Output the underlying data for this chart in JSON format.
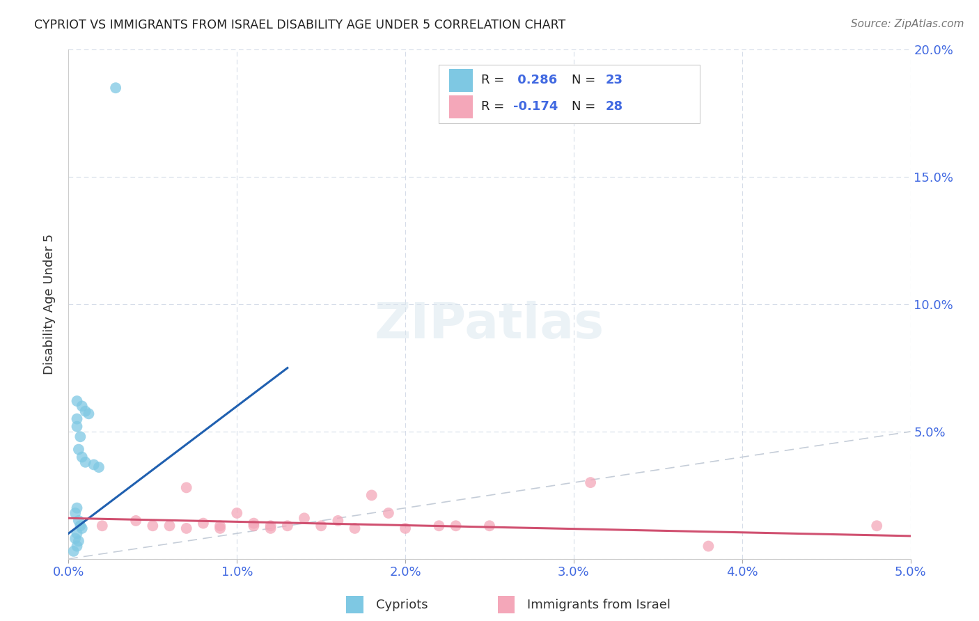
{
  "title": "CYPRIOT VS IMMIGRANTS FROM ISRAEL DISABILITY AGE UNDER 5 CORRELATION CHART",
  "source": "Source: ZipAtlas.com",
  "ylabel": "Disability Age Under 5",
  "xlabel_cypriot": "Cypriots",
  "xlabel_israel": "Immigrants from Israel",
  "xlim": [
    0.0,
    0.05
  ],
  "ylim": [
    0.0,
    0.2
  ],
  "xticks": [
    0.0,
    0.01,
    0.02,
    0.03,
    0.04,
    0.05
  ],
  "xtick_labels": [
    "0.0%",
    "1.0%",
    "2.0%",
    "3.0%",
    "4.0%",
    "5.0%"
  ],
  "yticks": [
    0.0,
    0.05,
    0.1,
    0.15,
    0.2
  ],
  "ytick_labels": [
    "",
    "5.0%",
    "10.0%",
    "15.0%",
    "20.0%"
  ],
  "legend_r1": " 0.286",
  "legend_n1": "23",
  "legend_r2": "-0.174",
  "legend_n2": "28",
  "cypriot_color": "#7ec8e3",
  "israel_color": "#f4a7b9",
  "cypriot_line_color": "#2060b0",
  "israel_line_color": "#d05070",
  "tick_color": "#4169E1",
  "diagonal_color": "#c5cdd8",
  "background_color": "#ffffff",
  "cypriot_scatter_x": [
    0.0028,
    0.0005,
    0.0008,
    0.001,
    0.0012,
    0.0005,
    0.0005,
    0.0007,
    0.0006,
    0.0008,
    0.001,
    0.0015,
    0.0018,
    0.0005,
    0.0004,
    0.0006,
    0.0007,
    0.0008,
    0.0005,
    0.0004,
    0.0006,
    0.0005,
    0.0003
  ],
  "cypriot_scatter_y": [
    0.185,
    0.062,
    0.06,
    0.058,
    0.057,
    0.055,
    0.052,
    0.048,
    0.043,
    0.04,
    0.038,
    0.037,
    0.036,
    0.02,
    0.018,
    0.015,
    0.013,
    0.012,
    0.01,
    0.008,
    0.007,
    0.005,
    0.003
  ],
  "israel_scatter_x": [
    0.048,
    0.038,
    0.031,
    0.025,
    0.023,
    0.022,
    0.02,
    0.019,
    0.018,
    0.017,
    0.016,
    0.015,
    0.014,
    0.013,
    0.012,
    0.012,
    0.011,
    0.011,
    0.01,
    0.009,
    0.009,
    0.008,
    0.007,
    0.007,
    0.006,
    0.005,
    0.004,
    0.002
  ],
  "israel_scatter_y": [
    0.013,
    0.005,
    0.03,
    0.013,
    0.013,
    0.013,
    0.012,
    0.018,
    0.025,
    0.012,
    0.015,
    0.013,
    0.016,
    0.013,
    0.013,
    0.012,
    0.014,
    0.013,
    0.018,
    0.013,
    0.012,
    0.014,
    0.012,
    0.028,
    0.013,
    0.013,
    0.015,
    0.013
  ],
  "cypriot_line_x": [
    0.0,
    0.013
  ],
  "cypriot_line_y": [
    0.01,
    0.075
  ],
  "israel_line_x": [
    0.0,
    0.05
  ],
  "israel_line_y": [
    0.016,
    0.009
  ]
}
